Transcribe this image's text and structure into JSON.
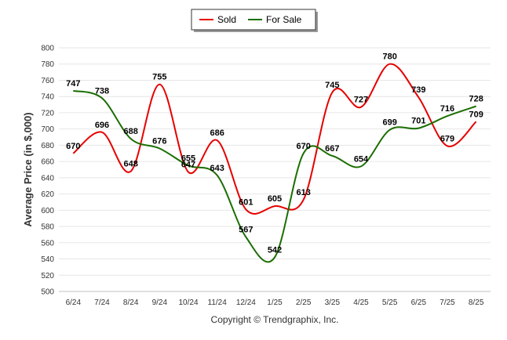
{
  "chart_data": {
    "type": "line",
    "categories": [
      "6/24",
      "7/24",
      "8/24",
      "9/24",
      "10/24",
      "11/24",
      "12/24",
      "1/25",
      "2/25",
      "3/25",
      "4/25",
      "5/25",
      "6/25",
      "7/25",
      "8/25"
    ],
    "series": [
      {
        "name": "Sold",
        "color": "#e60000",
        "values": [
          670,
          696,
          648,
          755,
          647,
          686,
          601,
          605,
          613,
          745,
          727,
          780,
          739,
          679,
          709
        ]
      },
      {
        "name": "For Sale",
        "color": "#1b6e00",
        "values": [
          747,
          738,
          688,
          676,
          655,
          643,
          567,
          542,
          670,
          667,
          654,
          699,
          701,
          716,
          728
        ]
      }
    ],
    "title": "",
    "xlabel": "",
    "ylabel": "Average Price (in $,000)",
    "ylim": [
      500,
      800
    ],
    "ytick_step": 20,
    "grid": true,
    "legend_position": "top-center",
    "credit": "Copyright © Trendgraphix, Inc."
  }
}
